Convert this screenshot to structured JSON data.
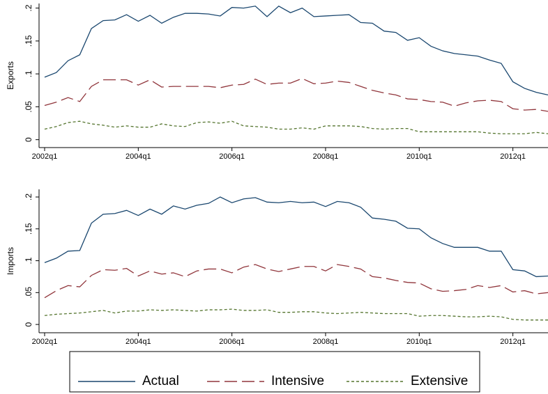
{
  "chart_data": [
    {
      "type": "line",
      "ylabel": "Exports",
      "categories": [
        "2002q1",
        null,
        null,
        null,
        null,
        null,
        null,
        null,
        "2004q1",
        null,
        null,
        null,
        null,
        null,
        null,
        null,
        "2006q1",
        null,
        null,
        null,
        null,
        null,
        null,
        null,
        "2008q1",
        null,
        null,
        null,
        null,
        null,
        null,
        null,
        "2010q1",
        null,
        null,
        null,
        null,
        null,
        null,
        null,
        "2012q1",
        null,
        null,
        null
      ],
      "ylim": [
        -0.012,
        0.207
      ],
      "yticks": [
        0,
        {
          "value": 0.05,
          "label": ".05"
        },
        {
          "value": 0.1,
          "label": ".1"
        },
        {
          "value": 0.15,
          "label": ".15"
        },
        {
          "value": 0.2,
          "label": ".2"
        }
      ],
      "series": [
        {
          "name": "Actual",
          "color": "#1a476f",
          "values": [
            0.095,
            0.102,
            0.12,
            0.129,
            0.169,
            0.181,
            0.182,
            0.19,
            0.18,
            0.189,
            0.177,
            0.186,
            0.192,
            0.192,
            0.191,
            0.188,
            0.201,
            0.2,
            0.203,
            0.187,
            0.203,
            0.193,
            0.2,
            0.187,
            0.188,
            0.189,
            0.19,
            0.178,
            0.177,
            0.165,
            0.163,
            0.151,
            0.155,
            0.142,
            0.135,
            0.131,
            0.129,
            0.127,
            0.121,
            0.116,
            0.088,
            0.078,
            0.072,
            0.068
          ]
        },
        {
          "name": "Intensive",
          "color": "#90353b",
          "values": [
            0.052,
            0.057,
            0.064,
            0.058,
            0.081,
            0.091,
            0.091,
            0.091,
            0.083,
            0.091,
            0.08,
            0.081,
            0.081,
            0.081,
            0.081,
            0.079,
            0.083,
            0.084,
            0.092,
            0.084,
            0.086,
            0.086,
            0.093,
            0.085,
            0.086,
            0.089,
            0.087,
            0.081,
            0.075,
            0.071,
            0.068,
            0.062,
            0.061,
            0.058,
            0.057,
            0.051,
            0.056,
            0.059,
            0.06,
            0.058,
            0.047,
            0.045,
            0.046,
            0.043
          ]
        },
        {
          "name": "Extensive",
          "color": "#55752f",
          "values": [
            0.016,
            0.02,
            0.026,
            0.028,
            0.024,
            0.022,
            0.019,
            0.021,
            0.019,
            0.019,
            0.024,
            0.021,
            0.02,
            0.026,
            0.027,
            0.025,
            0.028,
            0.021,
            0.02,
            0.019,
            0.016,
            0.016,
            0.018,
            0.016,
            0.021,
            0.021,
            0.021,
            0.02,
            0.017,
            0.016,
            0.017,
            0.017,
            0.012,
            0.012,
            0.012,
            0.012,
            0.012,
            0.012,
            0.01,
            0.009,
            0.009,
            0.009,
            0.011,
            0.009
          ]
        }
      ]
    },
    {
      "type": "line",
      "ylabel": "Imports",
      "categories": [
        "2002q1",
        null,
        null,
        null,
        null,
        null,
        null,
        null,
        "2004q1",
        null,
        null,
        null,
        null,
        null,
        null,
        null,
        "2006q1",
        null,
        null,
        null,
        null,
        null,
        null,
        null,
        "2008q1",
        null,
        null,
        null,
        null,
        null,
        null,
        null,
        "2010q1",
        null,
        null,
        null,
        null,
        null,
        null,
        null,
        "2012q1",
        null,
        null,
        null
      ],
      "ylim": [
        -0.013,
        0.212
      ],
      "yticks": [
        0,
        {
          "value": 0.05,
          "label": ".05"
        },
        {
          "value": 0.1,
          "label": ".1"
        },
        {
          "value": 0.15,
          "label": ".15"
        },
        {
          "value": 0.2,
          "label": ".2"
        }
      ],
      "series": [
        {
          "name": "Actual",
          "color": "#1a476f",
          "values": [
            0.097,
            0.104,
            0.115,
            0.116,
            0.159,
            0.173,
            0.174,
            0.179,
            0.171,
            0.181,
            0.173,
            0.186,
            0.181,
            0.187,
            0.19,
            0.2,
            0.191,
            0.197,
            0.199,
            0.192,
            0.191,
            0.193,
            0.191,
            0.192,
            0.185,
            0.193,
            0.191,
            0.184,
            0.167,
            0.165,
            0.162,
            0.151,
            0.15,
            0.136,
            0.127,
            0.121,
            0.121,
            0.121,
            0.115,
            0.115,
            0.086,
            0.084,
            0.075,
            0.076
          ]
        },
        {
          "name": "Intensive",
          "color": "#90353b",
          "values": [
            0.042,
            0.053,
            0.061,
            0.059,
            0.077,
            0.086,
            0.085,
            0.088,
            0.076,
            0.084,
            0.079,
            0.081,
            0.075,
            0.084,
            0.087,
            0.087,
            0.081,
            0.09,
            0.094,
            0.087,
            0.083,
            0.087,
            0.091,
            0.091,
            0.084,
            0.094,
            0.091,
            0.087,
            0.075,
            0.073,
            0.069,
            0.066,
            0.065,
            0.056,
            0.052,
            0.053,
            0.055,
            0.061,
            0.058,
            0.061,
            0.051,
            0.053,
            0.048,
            0.05
          ]
        },
        {
          "name": "Extensive",
          "color": "#55752f",
          "values": [
            0.014,
            0.016,
            0.017,
            0.018,
            0.02,
            0.022,
            0.018,
            0.021,
            0.021,
            0.023,
            0.022,
            0.023,
            0.022,
            0.021,
            0.023,
            0.023,
            0.024,
            0.022,
            0.022,
            0.023,
            0.019,
            0.019,
            0.02,
            0.02,
            0.018,
            0.017,
            0.018,
            0.019,
            0.018,
            0.017,
            0.017,
            0.017,
            0.013,
            0.014,
            0.014,
            0.013,
            0.012,
            0.012,
            0.013,
            0.012,
            0.008,
            0.007,
            0.007,
            0.007
          ]
        }
      ]
    }
  ]
}
